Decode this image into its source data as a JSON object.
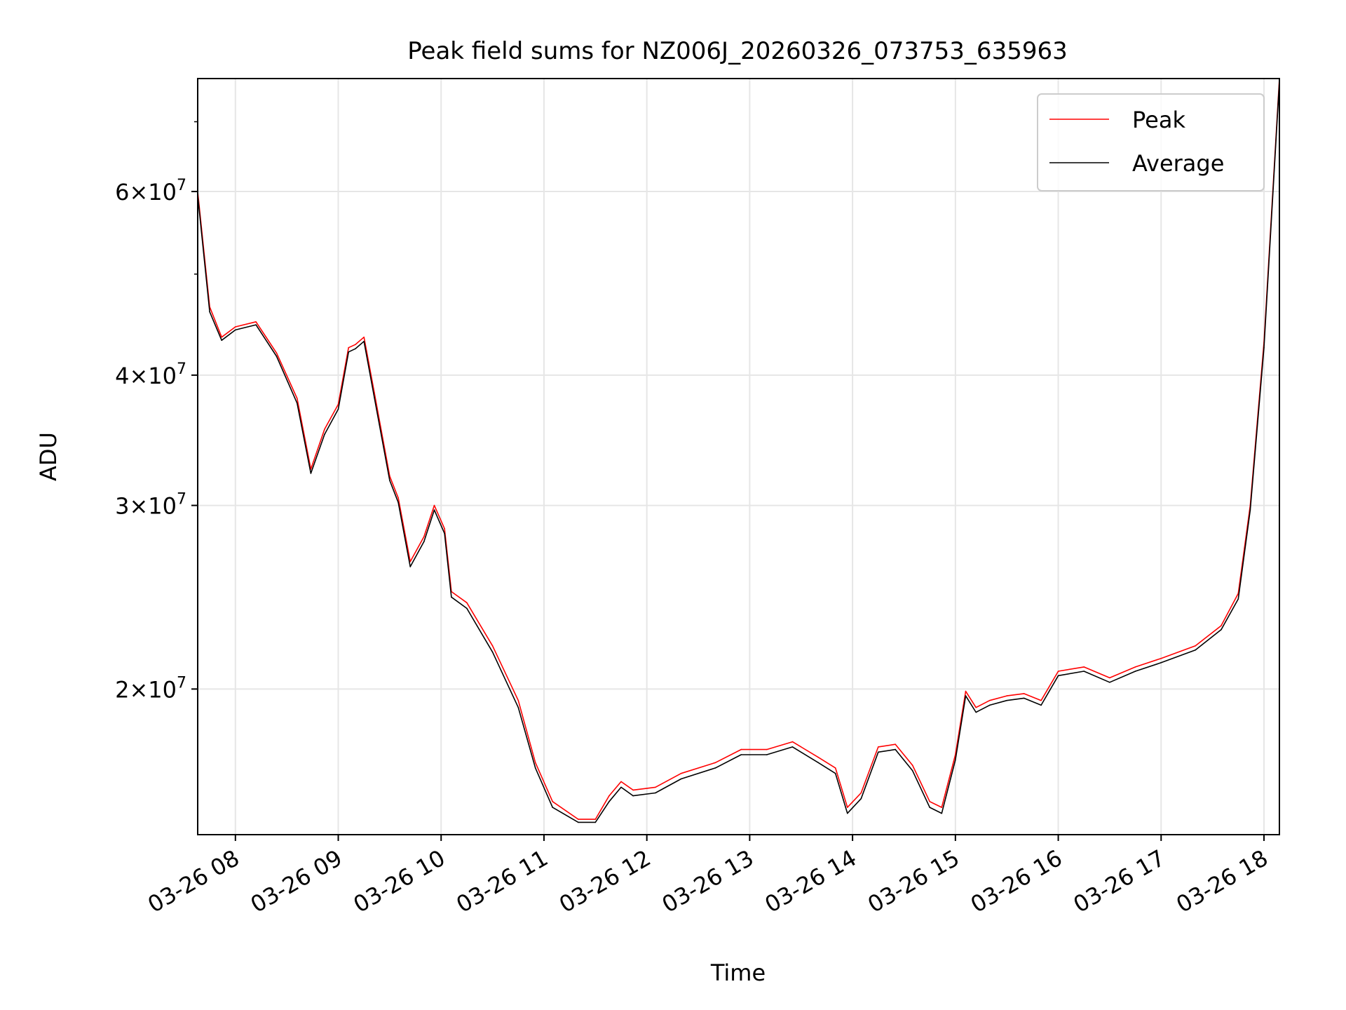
{
  "chart_data": {
    "type": "line",
    "title": "Peak field sums for NZ006J_20260326_073753_635963",
    "xlabel": "Time",
    "ylabel": "ADU",
    "x_scale": "time",
    "y_scale": "log",
    "xlim": [
      "03-26 07:38",
      "03-26 18:09"
    ],
    "ylim": [
      14500000,
      77000000
    ],
    "x_ticks": [
      "03-26 08",
      "03-26 09",
      "03-26 10",
      "03-26 11",
      "03-26 12",
      "03-26 13",
      "03-26 14",
      "03-26 15",
      "03-26 16",
      "03-26 17",
      "03-26 18"
    ],
    "y_ticks": [
      {
        "value": 20000000,
        "mantissa": "2",
        "exponent": "7"
      },
      {
        "value": 30000000,
        "mantissa": "3",
        "exponent": "7"
      },
      {
        "value": 40000000,
        "mantissa": "4",
        "exponent": "7"
      },
      {
        "value": 60000000,
        "mantissa": "6",
        "exponent": "7"
      }
    ],
    "y_minor_ticks": [
      50000000,
      70000000
    ],
    "grid": true,
    "legend_position": "top-right",
    "times": [
      "03-26 07:38",
      "03-26 07:45",
      "03-26 07:52",
      "03-26 08:00",
      "03-26 08:12",
      "03-26 08:24",
      "03-26 08:36",
      "03-26 08:44",
      "03-26 08:52",
      "03-26 09:00",
      "03-26 09:06",
      "03-26 09:10",
      "03-26 09:15",
      "03-26 09:21",
      "03-26 09:30",
      "03-26 09:35",
      "03-26 09:42",
      "03-26 09:50",
      "03-26 09:56",
      "03-26 10:02",
      "03-26 10:06",
      "03-26 10:15",
      "03-26 10:30",
      "03-26 10:45",
      "03-26 10:55",
      "03-26 11:05",
      "03-26 11:20",
      "03-26 11:30",
      "03-26 11:38",
      "03-26 11:45",
      "03-26 11:52",
      "03-26 12:05",
      "03-26 12:20",
      "03-26 12:40",
      "03-26 12:55",
      "03-26 13:10",
      "03-26 13:25",
      "03-26 13:40",
      "03-26 13:50",
      "03-26 13:57",
      "03-26 14:05",
      "03-26 14:15",
      "03-26 14:25",
      "03-26 14:35",
      "03-26 14:45",
      "03-26 14:52",
      "03-26 15:00",
      "03-26 15:06",
      "03-26 15:12",
      "03-26 15:20",
      "03-26 15:30",
      "03-26 15:40",
      "03-26 15:50",
      "03-26 16:00",
      "03-26 16:15",
      "03-26 16:30",
      "03-26 16:45",
      "03-26 17:00",
      "03-26 17:20",
      "03-26 17:35",
      "03-26 17:45",
      "03-26 17:52",
      "03-26 18:00",
      "03-26 18:09"
    ],
    "series": [
      {
        "name": "Peak",
        "color": "#ff0000",
        "linewidth": 1,
        "values": [
          60000000,
          46500000,
          43500000,
          44500000,
          45000000,
          42000000,
          38000000,
          32500000,
          35500000,
          37500000,
          42500000,
          42800000,
          43500000,
          38500000,
          32000000,
          30500000,
          26500000,
          28000000,
          30000000,
          28500000,
          24800000,
          24200000,
          22000000,
          19500000,
          17000000,
          15600000,
          15000000,
          15000000,
          15800000,
          16300000,
          16000000,
          16100000,
          16600000,
          17000000,
          17500000,
          17500000,
          17800000,
          17200000,
          16800000,
          15400000,
          15900000,
          17600000,
          17700000,
          16900000,
          15600000,
          15400000,
          17300000,
          19900000,
          19200000,
          19500000,
          19700000,
          19800000,
          19500000,
          20800000,
          21000000,
          20500000,
          21000000,
          21400000,
          22000000,
          23000000,
          24700000,
          30000000,
          43000000,
          77000000
        ]
      },
      {
        "name": "Average",
        "color": "#000000",
        "linewidth": 1,
        "values": [
          59500000,
          46000000,
          43200000,
          44200000,
          44700000,
          41700000,
          37600000,
          32200000,
          35100000,
          37100000,
          42100000,
          42400000,
          43100000,
          38100000,
          31700000,
          30200000,
          26200000,
          27700000,
          29700000,
          28200000,
          24500000,
          23900000,
          21700000,
          19200000,
          16800000,
          15400000,
          14900000,
          14900000,
          15600000,
          16100000,
          15800000,
          15900000,
          16400000,
          16800000,
          17300000,
          17300000,
          17600000,
          17000000,
          16600000,
          15200000,
          15700000,
          17400000,
          17500000,
          16700000,
          15400000,
          15200000,
          17100000,
          19700000,
          19000000,
          19300000,
          19500000,
          19600000,
          19300000,
          20600000,
          20800000,
          20300000,
          20800000,
          21200000,
          21800000,
          22800000,
          24400000,
          29700000,
          42500000,
          76500000
        ]
      }
    ]
  },
  "legend": {
    "items": [
      {
        "label": "Peak",
        "color": "#ff0000"
      },
      {
        "label": "Average",
        "color": "#000000"
      }
    ]
  }
}
